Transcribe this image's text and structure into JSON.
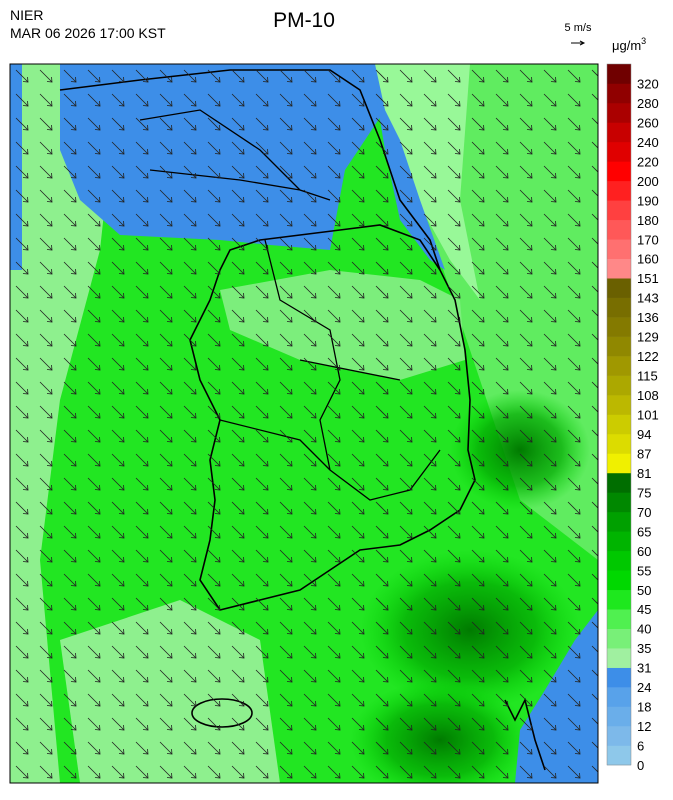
{
  "header": {
    "agency": "NIER",
    "timestamp": "MAR 06 2026 17:00 KST",
    "title": "PM-10"
  },
  "wind_reference": {
    "label": "5 m/s"
  },
  "legend": {
    "unit": "μg/m",
    "unit_exponent": "3",
    "levels": [
      0,
      6,
      12,
      18,
      24,
      31,
      35,
      40,
      45,
      50,
      55,
      60,
      65,
      70,
      75,
      81,
      87,
      94,
      101,
      108,
      115,
      122,
      129,
      136,
      143,
      151,
      160,
      170,
      180,
      190,
      200,
      220,
      240,
      260,
      280,
      320
    ],
    "colors": [
      "#8ec8ea",
      "#7db9ea",
      "#6aaeea",
      "#58a2ea",
      "#3d8ee8",
      "#a0f0a0",
      "#78f078",
      "#50f050",
      "#1ee81e",
      "#00d800",
      "#00c800",
      "#00b400",
      "#00a000",
      "#008800",
      "#006e00",
      "#f0f000",
      "#dcdc00",
      "#cccc00",
      "#bcb800",
      "#aca800",
      "#a09800",
      "#908800",
      "#847a00",
      "#786e00",
      "#6a6000",
      "#ff8888",
      "#ff7070",
      "#ff5858",
      "#ff4040",
      "#ff2020",
      "#ff0000",
      "#e00000",
      "#c80000",
      "#aa0000",
      "#900000",
      "#700000"
    ]
  }
}
